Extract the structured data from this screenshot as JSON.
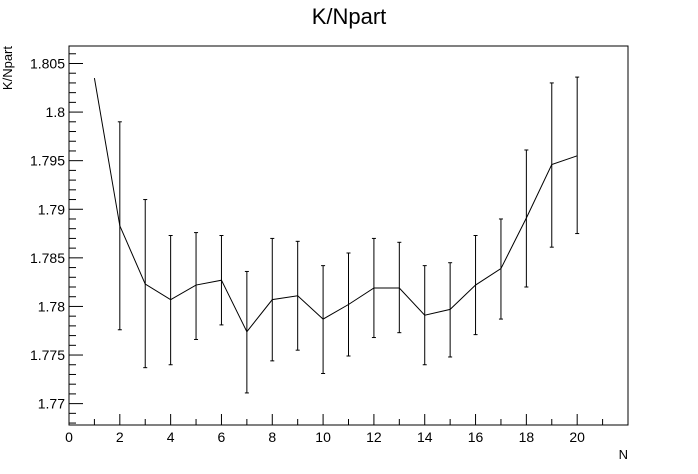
{
  "chart_data": {
    "type": "line",
    "title": "K/Npart",
    "xlabel": "N",
    "ylabel": "K/Npart",
    "xlim": [
      0,
      22
    ],
    "ylim": [
      1.7678,
      1.8068
    ],
    "x_ticks": [
      0,
      2,
      4,
      6,
      8,
      10,
      12,
      14,
      16,
      18,
      20
    ],
    "y_ticks": [
      1.77,
      1.775,
      1.78,
      1.785,
      1.79,
      1.795,
      1.8,
      1.805
    ],
    "y_tick_labels": [
      "1.77",
      "1.775",
      "1.78",
      "1.785",
      "1.79",
      "1.795",
      "1.8",
      "1.805"
    ],
    "grid": false,
    "series": [
      {
        "x": [
          1,
          2,
          3,
          4,
          5,
          6,
          7,
          8,
          9,
          10,
          11,
          12,
          13,
          14,
          15,
          16,
          17,
          18,
          19,
          20
        ],
        "values": [
          1.8035,
          1.7883,
          1.7823,
          1.7807,
          1.7822,
          1.7827,
          1.7774,
          1.7807,
          1.7811,
          1.7787,
          1.7802,
          1.7819,
          1.7819,
          1.7791,
          1.7797,
          1.7822,
          1.7839,
          1.7891,
          1.7946,
          1.7955
        ],
        "err_low": [
          null,
          1.7776,
          1.7737,
          1.774,
          1.7766,
          1.7781,
          1.7711,
          1.7744,
          1.7755,
          1.7731,
          1.7749,
          1.7768,
          1.7773,
          1.774,
          1.7748,
          1.7771,
          1.7787,
          1.782,
          1.7861,
          1.7875
        ],
        "err_high": [
          null,
          1.799,
          1.791,
          1.7873,
          1.7876,
          1.7873,
          1.7836,
          1.787,
          1.7867,
          1.7842,
          1.7855,
          1.787,
          1.7866,
          1.7842,
          1.7845,
          1.7873,
          1.789,
          1.7961,
          1.803,
          1.8036
        ]
      }
    ]
  }
}
